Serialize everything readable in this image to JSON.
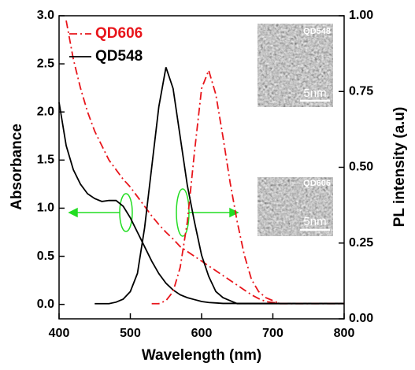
{
  "chart_data": {
    "type": "line",
    "x_label": "Wavelength (nm)",
    "y_label": "Absorbance",
    "y2_label": "PL intensity (a.u)",
    "xlim": [
      400,
      800
    ],
    "xticks": [
      400,
      500,
      600,
      700,
      800
    ],
    "ylim": [
      -0.15,
      3.0
    ],
    "yticks": [
      {
        "value": 0,
        "label": "0.0"
      },
      0.5,
      {
        "value": 1,
        "label": "1.0"
      },
      1.5,
      {
        "value": 2,
        "label": "2.0"
      },
      2.5,
      {
        "value": 3,
        "label": "3.0"
      }
    ],
    "y2lim": [
      0,
      1.0
    ],
    "y2ticks": [
      {
        "value": 0,
        "label": "0.00"
      },
      {
        "value": 0.25,
        "label": "0.25"
      },
      {
        "value": 0.5,
        "label": "0.50"
      },
      {
        "value": 0.75,
        "label": "0.75"
      },
      {
        "value": 1,
        "label": "1.00"
      }
    ],
    "x": [
      400,
      410,
      420,
      430,
      440,
      450,
      460,
      470,
      480,
      490,
      500,
      510,
      520,
      530,
      540,
      550,
      560,
      570,
      580,
      590,
      600,
      610,
      620,
      630,
      640,
      650,
      660,
      670,
      680,
      690,
      700,
      710,
      720,
      730,
      740,
      750,
      760,
      770,
      780,
      790,
      800
    ],
    "series": [
      {
        "name": "QD606",
        "color": "#e8151b",
        "dash": "dashdot",
        "values": [
          null,
          2.95,
          2.55,
          2.25,
          2.0,
          1.8,
          1.65,
          1.5,
          1.4,
          1.3,
          1.22,
          1.12,
          1.02,
          0.92,
          0.83,
          0.75,
          0.68,
          0.6,
          0.55,
          0.5,
          0.45,
          0.4,
          0.35,
          0.3,
          0.25,
          0.2,
          0.15,
          0.1,
          0.06,
          0.03,
          0.02,
          0.01,
          0.01,
          0.01,
          0.01,
          0.01,
          0.01,
          0.01,
          0.01,
          0.01,
          0.01
        ]
      },
      {
        "name": "QD548",
        "color": "#000000",
        "dash": "solid",
        "values": [
          2.1,
          1.65,
          1.4,
          1.25,
          1.15,
          1.1,
          1.07,
          1.08,
          1.08,
          1.02,
          0.9,
          0.75,
          0.6,
          0.45,
          0.32,
          0.22,
          0.15,
          0.1,
          0.07,
          0.05,
          0.03,
          0.02,
          0.015,
          0.01,
          0.01,
          0.01,
          0.01,
          0.01,
          0.01,
          0.01,
          0.01,
          0.01,
          0.01,
          0.01,
          0.01,
          0.01,
          0.01,
          0.01,
          0.01,
          0.01,
          0.01
        ]
      },
      {
        "color": "#e8151b",
        "dash": "dashdot",
        "axis": "y2",
        "values": [
          null,
          null,
          null,
          null,
          null,
          null,
          null,
          null,
          null,
          null,
          null,
          null,
          null,
          0.05,
          0.05,
          0.06,
          0.09,
          0.17,
          0.32,
          0.55,
          0.76,
          0.82,
          0.74,
          0.6,
          0.45,
          0.32,
          0.21,
          0.13,
          0.09,
          0.07,
          0.06,
          0.05,
          0.05,
          0.05,
          0.05,
          0.05,
          0.05,
          0.05,
          0.05,
          0.05,
          0.05
        ]
      },
      {
        "color": "#000000",
        "dash": "solid",
        "axis": "y2",
        "values": [
          null,
          null,
          null,
          null,
          null,
          0.05,
          0.05,
          0.05,
          0.055,
          0.065,
          0.09,
          0.15,
          0.3,
          0.5,
          0.7,
          0.83,
          0.76,
          0.6,
          0.44,
          0.32,
          0.21,
          0.14,
          0.09,
          0.07,
          0.06,
          0.05,
          0.05,
          0.05,
          0.05,
          0.05,
          0.05,
          0.05,
          0.05,
          0.05,
          0.05,
          0.05,
          0.05,
          0.05,
          0.05,
          0.05,
          0.05
        ]
      }
    ],
    "insets": [
      {
        "label": "QD548",
        "scale": "5nm"
      },
      {
        "label": "QD606",
        "scale": "5nm"
      }
    ]
  }
}
